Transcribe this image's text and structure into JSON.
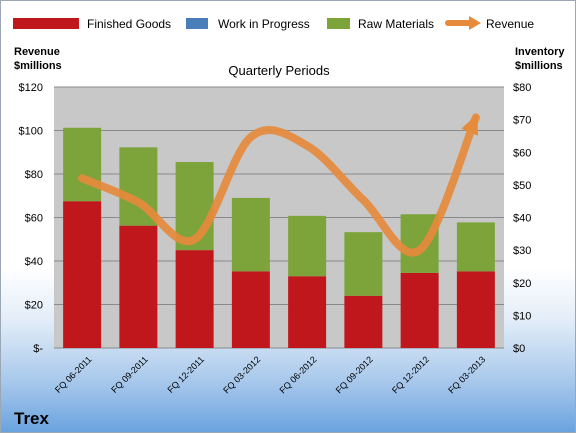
{
  "chart_data": {
    "type": "bar",
    "title": "Quarterly Periods",
    "company": "Trex",
    "categories": [
      "FQ 06-2011",
      "FQ 09-2011",
      "FQ 12-2011",
      "FQ 03-2012",
      "FQ 06-2012",
      "FQ 09-2012",
      "FQ 12-2012",
      "FQ 03-2013"
    ],
    "stacked": true,
    "series": [
      {
        "name": "Finished Goods",
        "axis": "right",
        "color": "#c0171c",
        "values": [
          45,
          37.5,
          30,
          23.5,
          22,
          16,
          23,
          23.5
        ]
      },
      {
        "name": "Work in Progress",
        "axis": "right",
        "color": "#4a7ebb",
        "values": [
          0,
          0,
          0,
          0,
          0,
          0,
          0,
          0
        ]
      },
      {
        "name": "Raw Materials",
        "axis": "right",
        "color": "#7da33b",
        "values": [
          22.5,
          24,
          27,
          22.5,
          18.5,
          19.5,
          18,
          15
        ]
      }
    ],
    "line_series": {
      "name": "Revenue",
      "axis": "left",
      "color": "#e68a3c",
      "values": [
        78,
        67,
        50,
        97,
        93,
        68,
        45,
        106
      ]
    },
    "ylabel_left": "Revenue\n$millions",
    "ylabel_right": "Inventory\n$millions",
    "ylim_left": [
      0,
      120
    ],
    "ylim_right": [
      0,
      80
    ],
    "yticks_left": [
      "$-",
      "$20",
      "$40",
      "$60",
      "$80",
      "$100",
      "$120"
    ],
    "yticks_right": [
      "$0",
      "$10",
      "$20",
      "$30",
      "$40",
      "$50",
      "$60",
      "$70",
      "$80"
    ],
    "grid": true,
    "legend_position": "top"
  }
}
